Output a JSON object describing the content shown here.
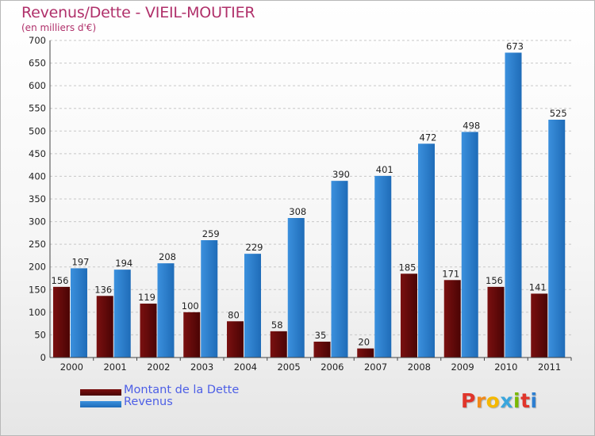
{
  "colors": {
    "dette": "#7a1010",
    "dette_dark": "#4a0404",
    "revenus": "#3b90dd",
    "revenus_dark": "#1f6cb8",
    "grid": "#c8c8c8",
    "title": "#b0306a"
  },
  "legend": {
    "dette_label": "Montant de la Dette",
    "revenus_label": "Revenus"
  },
  "logo": {
    "letters": [
      "P",
      "r",
      "o",
      "x",
      "i",
      "t",
      "i"
    ],
    "colors": [
      "#e0352b",
      "#f08a1c",
      "#f5b800",
      "#3aa6dd",
      "#7ab800",
      "#e0352b",
      "#2e7fd1"
    ]
  },
  "chart_data": {
    "type": "bar",
    "title": "Revenus/Dette - VIEIL-MOUTIER",
    "subtitle": "(en milliers d'€)",
    "categories": [
      "2000",
      "2001",
      "2002",
      "2003",
      "2004",
      "2005",
      "2006",
      "2007",
      "2008",
      "2009",
      "2010",
      "2011"
    ],
    "series": [
      {
        "name": "Montant de la Dette",
        "values": [
          156,
          136,
          119,
          100,
          80,
          58,
          35,
          20,
          185,
          171,
          156,
          141
        ]
      },
      {
        "name": "Revenus",
        "values": [
          197,
          194,
          208,
          259,
          229,
          308,
          390,
          401,
          472,
          498,
          673,
          525
        ]
      }
    ],
    "ylim": [
      0,
      700
    ],
    "yticks": [
      0,
      50,
      100,
      150,
      200,
      250,
      300,
      350,
      400,
      450,
      500,
      550,
      600,
      650,
      700
    ],
    "grid": true,
    "legend_position": "bottom-left"
  }
}
